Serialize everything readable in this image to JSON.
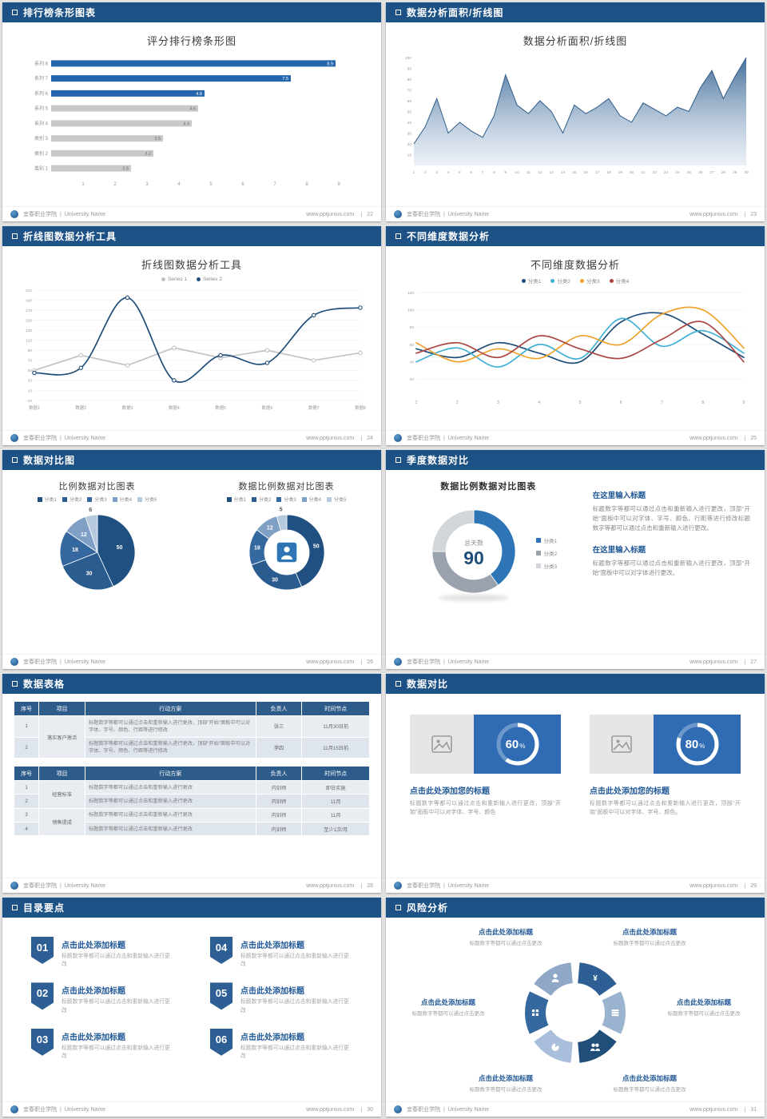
{
  "footer": {
    "school": "宜春职业学院",
    "divider": "|",
    "university": "University Name",
    "site": "www.pptjunius.com"
  },
  "palette": {
    "header_bg": "#1d5286",
    "accent_blue": "#2e75b6",
    "dark_blue": "#1f4e79",
    "bar_gray": "#c9c9c9"
  },
  "slides": [
    {
      "header": "排行榜条形图表",
      "page": "22",
      "title": "评分排行榜条形图",
      "chart_data": {
        "type": "bar",
        "orientation": "horizontal",
        "categories": [
          "系列 8",
          "系列 7",
          "系列 6",
          "系列 5",
          "系列 4",
          "类别 3",
          "类别 2",
          "类别 1"
        ],
        "values": [
          8.9,
          7.5,
          4.8,
          4.6,
          4.4,
          3.5,
          3.2,
          2.5
        ],
        "highlight_count": 3,
        "highlight_color": "#2565ae",
        "normal_color": "#c9c9c9",
        "xticks": [
          1,
          2,
          3,
          4,
          5,
          6,
          7,
          8,
          9
        ],
        "xlim": [
          0,
          9.5
        ]
      }
    },
    {
      "header": "数据分析面积/折线图",
      "page": "23",
      "title": "数据分析面积/折线图",
      "chart_data": {
        "type": "area",
        "x": [
          1,
          2,
          3,
          4,
          5,
          6,
          7,
          8,
          9,
          10,
          11,
          12,
          13,
          14,
          15,
          16,
          17,
          18,
          19,
          20,
          21,
          22,
          23,
          24,
          25,
          26,
          27,
          28,
          29,
          30
        ],
        "values": [
          20,
          36,
          62,
          30,
          40,
          32,
          26,
          46,
          84,
          56,
          48,
          60,
          50,
          30,
          56,
          48,
          54,
          62,
          46,
          40,
          58,
          52,
          46,
          54,
          50,
          72,
          88,
          62,
          82,
          100
        ],
        "yticks": [
          100,
          90,
          80,
          70,
          60,
          50,
          40,
          30,
          20,
          10
        ],
        "ylim": [
          0,
          100
        ],
        "line_color": "#2e5c8a",
        "fill_top": "#3a6795",
        "fill_bottom": "#d8e2ee"
      }
    },
    {
      "header": "折线图数据分析工具",
      "page": "24",
      "title": "折线图数据分析工具",
      "chart_data": {
        "type": "line",
        "categories": [
          "数据1",
          "数据2",
          "数据3",
          "数据4",
          "数据5",
          "数据6",
          "数据7",
          "数据8"
        ],
        "series": [
          {
            "name": "Series 1",
            "color": "#c3c3c3",
            "smooth": false,
            "values": [
              50,
              80,
              60,
              95,
              75,
              90,
              70,
              85
            ]
          },
          {
            "name": "Series 2",
            "color": "#1f4e79",
            "smooth": true,
            "values": [
              45,
              55,
              195,
              30,
              80,
              65,
              160,
              175
            ]
          }
        ],
        "yticks": [
          210,
          190,
          170,
          150,
          130,
          110,
          90,
          70,
          50,
          30,
          10,
          -10
        ],
        "ylim": [
          -10,
          210
        ],
        "legend_position": "top",
        "markers": true
      }
    },
    {
      "header": "不同维度数据分析",
      "page": "25",
      "title": "不同维度数据分析",
      "chart_data": {
        "type": "line",
        "x": [
          1,
          2,
          3,
          4,
          5,
          6,
          7,
          8,
          9
        ],
        "series": [
          {
            "name": "分类1",
            "color": "#1f4e79",
            "smooth": true,
            "values": [
              55,
              45,
              62,
              50,
              40,
              86,
              96,
              72,
              45
            ]
          },
          {
            "name": "分类2",
            "color": "#41b0d5",
            "smooth": true,
            "values": [
              40,
              56,
              34,
              60,
              44,
              90,
              58,
              76,
              50
            ]
          },
          {
            "name": "分类3",
            "color": "#f0a22e",
            "smooth": true,
            "values": [
              62,
              40,
              55,
              44,
              70,
              60,
              95,
              100,
              56
            ]
          },
          {
            "name": "分类4",
            "color": "#aa4643",
            "smooth": true,
            "values": [
              50,
              62,
              45,
              70,
              55,
              44,
              66,
              86,
              40
            ]
          }
        ],
        "yticks": [
          120,
          100,
          80,
          60,
          40,
          20
        ],
        "ylim": [
          0,
          120
        ],
        "legend_position": "top",
        "markers": false
      }
    },
    {
      "header": "数据对比图",
      "page": "26",
      "left_chart": {
        "type": "pie",
        "title": "比例数据对比图表",
        "legend": [
          "分类1",
          "分类2",
          "分类3",
          "分类4",
          "分类5"
        ],
        "values": [
          50,
          30,
          18,
          12,
          6
        ],
        "colors": [
          "#205081",
          "#2a5c90",
          "#35689f",
          "#7f9fc4",
          "#b7c9de"
        ]
      },
      "right_chart": {
        "type": "donut",
        "title": "数据比例数据对比图表",
        "legend": [
          "分类1",
          "分类2",
          "分类3",
          "分类4",
          "分类5"
        ],
        "values": [
          50,
          30,
          18,
          12,
          5
        ],
        "colors": [
          "#205081",
          "#2a5c90",
          "#35689f",
          "#7f9fc4",
          "#b7c9de"
        ],
        "center_icon": "person-icon"
      }
    },
    {
      "header": "季度数据对比",
      "page": "27",
      "title": "数据比例数据对比图表",
      "chart_data": {
        "type": "donut",
        "center_label": "总天数",
        "center_value": "90",
        "legend": [
          "分类1",
          "分类2",
          "分类3"
        ],
        "values": [
          40,
          35,
          25
        ],
        "colors": [
          "#2e75b6",
          "#9aa3ad",
          "#d2d6db"
        ]
      },
      "sections": [
        {
          "heading": "在这里输入标题",
          "body": "标题数字等都可以通过点击和重新输入进行更改，顶部“开始”面板中可以对字体、字号、颜色、行距等进行修改标题数字等都可以通过点击和重新输入进行更改。"
        },
        {
          "heading": "在这里输入标题",
          "body": "标题数字等都可以通过点击和重新输入进行更改，顶部“开始”面板中可以对字体进行更改。"
        }
      ]
    },
    {
      "header": "数据表格",
      "page": "28",
      "tables": [
        {
          "columns": [
            "序号",
            "项目",
            "行动方案",
            "负责人",
            "时间节点"
          ],
          "rows": [
            {
              "no": "1",
              "project": "落实客户激活",
              "project_span": 2,
              "action": "标题数字等都可以通过点击和重新输入进行更改，顶部“开始”面板中可以对字体、字号、颜色、行距等进行修改",
              "owner": "张三",
              "time": "11月30日前"
            },
            {
              "no": "2",
              "project": "",
              "action": "标题数字等都可以通过点击和重新输入进行更改，顶部“开始”面板中可以对字体、字号、颜色、行距等进行修改",
              "owner": "李四",
              "time": "11月15日前"
            }
          ]
        },
        {
          "columns": [
            "序号",
            "项目",
            "行动方案",
            "负责人",
            "时间节点"
          ],
          "rows": [
            {
              "no": "1",
              "project": "经营标准",
              "project_span": 2,
              "action": "标题数字等都可以通过点击和重新输入进行更改",
              "owner": "内训师",
              "time": "即日实施"
            },
            {
              "no": "2",
              "project": "",
              "action": "标题数字等都可以通过点击和重新输入进行更改",
              "owner": "内训师",
              "time": "11月"
            },
            {
              "no": "3",
              "project": "销售提成",
              "project_span": 2,
              "action": "标题数字等都可以通过点击和重新输入进行更改",
              "owner": "内训师",
              "time": "11月"
            },
            {
              "no": "4",
              "project": "",
              "action": "标题数字等都可以通过点击和重新输入进行更改",
              "owner": "内训师",
              "time": "至少1次/月"
            }
          ]
        }
      ]
    },
    {
      "header": "数据对比",
      "page": "29",
      "cards": [
        {
          "percent": 60,
          "percent_label": "60",
          "percent_unit": "%",
          "title": "点击此处添加您的标题",
          "body": "标题数字等都可以通过点击和重新输入进行更改，顶部“开始”面板中可以对字体、字号、颜色"
        },
        {
          "percent": 80,
          "percent_label": "80",
          "percent_unit": "%",
          "title": "点击此处添加您的标题",
          "body": "标题数字等都可以通过点击和重新输入进行更改，顶部“开始”面板中可以对字体、字号、颜色。"
        }
      ]
    },
    {
      "header": "目录要点",
      "page": "30",
      "items": [
        {
          "num": "01",
          "title": "点击此处添加标题",
          "body": "标题数字等都可以通过点击和重新输入进行更改"
        },
        {
          "num": "02",
          "title": "点击此处添加标题",
          "body": "标题数字等都可以通过点击和重新输入进行更改"
        },
        {
          "num": "03",
          "title": "点击此处添加标题",
          "body": "标题数字等都可以通过点击和重新输入进行更改"
        },
        {
          "num": "04",
          "title": "点击此处添加标题",
          "body": "标题数字等都可以通过点击和重新输入进行更改"
        },
        {
          "num": "05",
          "title": "点击此处添加标题",
          "body": "标题数字等都可以通过点击和重新输入进行更改"
        },
        {
          "num": "06",
          "title": "点击此处添加标题",
          "body": "标题数字等都可以通过点击和重新输入进行更改"
        }
      ]
    },
    {
      "header": "风险分析",
      "page": "31",
      "labels": [
        {
          "pos": "top-left",
          "title": "点击此处添加标题",
          "body": "标题数字等都可以通过点击更改"
        },
        {
          "pos": "top-right",
          "title": "点击此处添加标题",
          "body": "标题数字等都可以通过点击更改"
        },
        {
          "pos": "mid-left",
          "title": "点击此处添加标题",
          "body": "标题数字等都可以通过点击更改"
        },
        {
          "pos": "mid-right",
          "title": "点击此处添加标题",
          "body": "标题数字等都可以通过点击更改"
        },
        {
          "pos": "bottom-left",
          "title": "点击此处添加标题",
          "body": "标题数字等都可以通过点击更改"
        },
        {
          "pos": "bottom-right",
          "title": "点击此处添加标题",
          "body": "标题数字等都可以通过点击更改"
        }
      ],
      "wheel_icons": [
        "money-bag-icon",
        "coins-icon",
        "people-icon",
        "pie-icon",
        "grid-icon",
        "person-icon"
      ],
      "wheel_colors": [
        "#2d5f94",
        "#9ab3cf",
        "#1f4e79",
        "#a9bedb",
        "#35689f",
        "#8fa8c8"
      ]
    }
  ]
}
